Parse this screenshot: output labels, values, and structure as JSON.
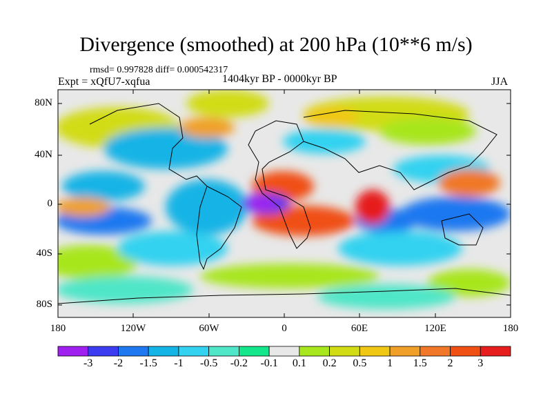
{
  "title": "Divergence (smoothed) at 200 hPa (10**6 m/s)",
  "stats": "rmsd= 0.997828 diff= 0.000542317",
  "experiment": "Expt = xQfU7-xqfua",
  "period": "1404kyr BP - 0000kyr BP",
  "season": "JJA",
  "colors": {
    "background": "#e8e8e8",
    "palette": [
      "#a020f0",
      "#3c3cf0",
      "#1e78f0",
      "#14b4e6",
      "#32d2f0",
      "#50e6c8",
      "#14e68c",
      "#e8e8e8",
      "#a8e61e",
      "#d2dc14",
      "#f0c814",
      "#f0a028",
      "#f07828",
      "#f05014",
      "#e61e1e"
    ]
  },
  "map": {
    "lat_labels": [
      "80N",
      "40N",
      "0",
      "40S",
      "80S"
    ],
    "lon_labels": [
      "180",
      "120W",
      "60W",
      "0",
      "60E",
      "120E",
      "180"
    ]
  },
  "colorbar": {
    "labels": [
      "-3",
      "-2",
      "-1.5",
      "-1",
      "-0.5",
      "-0.2",
      "-0.1",
      "0.1",
      "0.2",
      "0.5",
      "1",
      "1.5",
      "2",
      "3"
    ]
  }
}
